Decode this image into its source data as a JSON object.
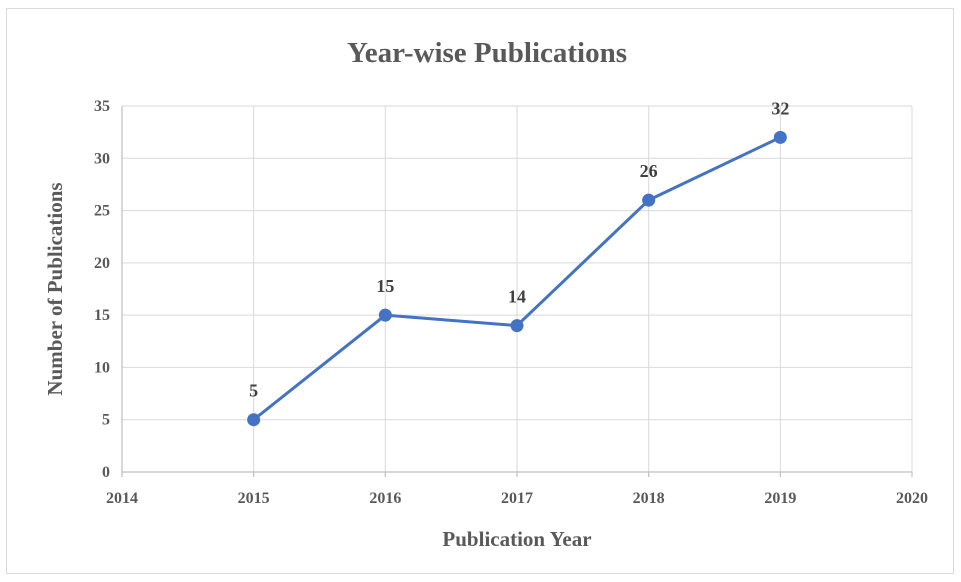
{
  "chart_data": {
    "type": "line",
    "title": "Year-wise Publications",
    "xlabel": "Publication Year",
    "ylabel": "Number of Publications",
    "xlim": [
      2014,
      2020
    ],
    "ylim": [
      0,
      35
    ],
    "x_ticks": [
      "2014",
      "2015",
      "2016",
      "2017",
      "2018",
      "2019",
      "2020"
    ],
    "y_ticks": [
      "0",
      "5",
      "10",
      "15",
      "20",
      "25",
      "30",
      "35"
    ],
    "grid": true,
    "series": [
      {
        "x": [
          2015,
          2016,
          2017,
          2018,
          2019
        ],
        "values": [
          5,
          15,
          14,
          26,
          32
        ],
        "data_labels": [
          "5",
          "15",
          "14",
          "26",
          "32"
        ],
        "color": "#4472c4"
      }
    ]
  }
}
